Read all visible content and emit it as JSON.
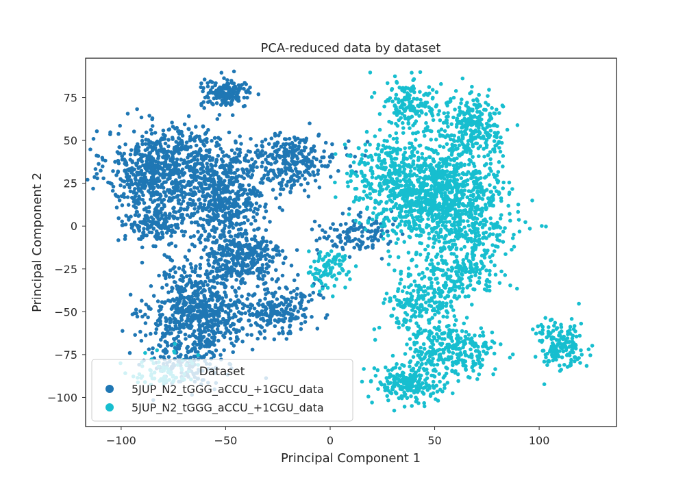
{
  "chart_data": {
    "type": "scatter",
    "title": "PCA-reduced data by dataset",
    "xlabel": "Principal Component 1",
    "ylabel": "Principal Component 2",
    "xlim": [
      -117,
      137
    ],
    "ylim": [
      -117,
      98
    ],
    "xticks": [
      -100,
      -50,
      0,
      50,
      100
    ],
    "yticks": [
      -100,
      -75,
      -50,
      -25,
      0,
      25,
      50,
      75
    ],
    "xtick_labels": [
      "−100",
      "−50",
      "0",
      "50",
      "100"
    ],
    "ytick_labels": [
      "−100",
      "−75",
      "−50",
      "−25",
      "0",
      "25",
      "50",
      "75"
    ],
    "grid": false,
    "legend": {
      "title": "Dataset",
      "placement": "lower-left"
    },
    "series": [
      {
        "name": "5JUP_N2_tGGG_aCCU_+1GCU_data",
        "color": "#1f77b4",
        "clusters": [
          {
            "cx": -85,
            "cy": 32,
            "sx": 11,
            "sy": 12,
            "n": 520
          },
          {
            "cx": -52,
            "cy": 18,
            "sx": 10,
            "sy": 13,
            "n": 560
          },
          {
            "cx": -84,
            "cy": 2,
            "sx": 7,
            "sy": 6,
            "n": 170
          },
          {
            "cx": -50,
            "cy": 77,
            "sx": 6,
            "sy": 4,
            "n": 150
          },
          {
            "cx": -20,
            "cy": 38,
            "sx": 12,
            "sy": 8,
            "n": 300
          },
          {
            "cx": -42,
            "cy": -18,
            "sx": 10,
            "sy": 9,
            "n": 280
          },
          {
            "cx": -63,
            "cy": -52,
            "sx": 12,
            "sy": 9,
            "n": 520
          },
          {
            "cx": -25,
            "cy": -48,
            "sx": 9,
            "sy": 8,
            "n": 220
          },
          {
            "cx": -68,
            "cy": -78,
            "sx": 10,
            "sy": 8,
            "n": 170
          },
          {
            "cx": 12,
            "cy": -5,
            "sx": 9,
            "sy": 6,
            "n": 120
          },
          {
            "cx": -70,
            "cy": 45,
            "sx": 8,
            "sy": 8,
            "n": 140
          },
          {
            "cx": -60,
            "cy": -28,
            "sx": 12,
            "sy": 8,
            "n": 140
          }
        ]
      },
      {
        "name": "5JUP_N2_tGGG_aCCU_+1CGU_data",
        "color": "#17becf",
        "clusters": [
          {
            "cx": 50,
            "cy": 20,
            "sx": 14,
            "sy": 14,
            "n": 900
          },
          {
            "cx": 68,
            "cy": 58,
            "sx": 7,
            "sy": 9,
            "n": 250
          },
          {
            "cx": 40,
            "cy": 70,
            "sx": 7,
            "sy": 8,
            "n": 170
          },
          {
            "cx": 25,
            "cy": 28,
            "sx": 9,
            "sy": 13,
            "n": 200
          },
          {
            "cx": 45,
            "cy": -45,
            "sx": 9,
            "sy": 9,
            "n": 220
          },
          {
            "cx": 58,
            "cy": -72,
            "sx": 10,
            "sy": 7,
            "n": 280
          },
          {
            "cx": 38,
            "cy": -92,
            "sx": 9,
            "sy": 6,
            "n": 220
          },
          {
            "cx": -2,
            "cy": -25,
            "sx": 5,
            "sy": 6,
            "n": 90
          },
          {
            "cx": 110,
            "cy": -70,
            "sx": 6,
            "sy": 7,
            "n": 170
          },
          {
            "cx": 60,
            "cy": -28,
            "sx": 10,
            "sy": 7,
            "n": 160
          },
          {
            "cx": 68,
            "cy": 5,
            "sx": 12,
            "sy": 15,
            "n": 280
          },
          {
            "cx": -80,
            "cy": -85,
            "sx": 8,
            "sy": 5,
            "n": 70
          }
        ]
      }
    ]
  }
}
